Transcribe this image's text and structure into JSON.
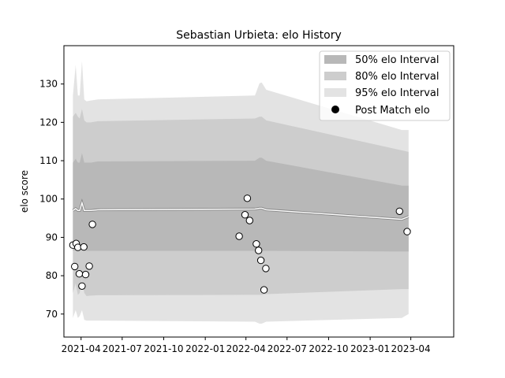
{
  "chart_data": {
    "type": "area",
    "title": "Sebastian Urbieta: elo History",
    "xlabel": "",
    "ylabel": "elo score",
    "x_range_days": [
      -38,
      825
    ],
    "ylim": [
      64,
      140
    ],
    "yticks": [
      70,
      80,
      90,
      100,
      110,
      120,
      130
    ],
    "xticks": [
      {
        "label": "2021-04",
        "day": 0
      },
      {
        "label": "2021-07",
        "day": 91
      },
      {
        "label": "2021-10",
        "day": 183
      },
      {
        "label": "2022-01",
        "day": 275
      },
      {
        "label": "2022-04",
        "day": 365
      },
      {
        "label": "2022-07",
        "day": 456
      },
      {
        "label": "2022-10",
        "day": 548
      },
      {
        "label": "2023-01",
        "day": 640
      },
      {
        "label": "2023-04",
        "day": 730
      }
    ],
    "legend": {
      "placement": "top-right",
      "entries": [
        "50% elo Interval",
        "80% elo Interval",
        "95% elo Interval",
        "Post Match elo"
      ]
    },
    "bands": {
      "days": [
        -18,
        -12,
        -7,
        -3,
        2,
        7,
        12,
        22,
        37,
        385,
        395,
        400,
        410,
        710,
        725
      ],
      "mean": [
        97,
        97.5,
        97,
        97,
        99,
        97,
        97,
        97,
        97.2,
        97.4,
        97.6,
        97.6,
        97.2,
        94.7,
        95.4
      ],
      "p50_lo": [
        86.5,
        86.7,
        86.5,
        86.5,
        87,
        86.5,
        86.5,
        86.5,
        86.5,
        86.5,
        86.5,
        86.5,
        86.5,
        86.3,
        86.3
      ],
      "p50_hi": [
        109.5,
        110.5,
        109.5,
        109.5,
        112,
        109.5,
        109.5,
        109.5,
        109.8,
        110,
        110.8,
        110.8,
        110,
        103.5,
        103.5
      ],
      "p80_lo": [
        75.5,
        78,
        75,
        75.5,
        79,
        75.5,
        74.7,
        74.8,
        74.9,
        75,
        75,
        75,
        75.2,
        76.5,
        76.5
      ],
      "p80_hi": [
        121.5,
        122.5,
        121.5,
        121,
        123.5,
        120.5,
        120,
        120,
        120.3,
        121,
        121.5,
        121.5,
        120.5,
        112.7,
        112.3
      ],
      "p95_lo": [
        69,
        71,
        69,
        69.5,
        71,
        68.5,
        68.3,
        68.3,
        68.3,
        68,
        67.5,
        67.5,
        68,
        69,
        70
      ],
      "p95_hi": [
        127,
        135,
        127,
        127,
        136,
        126,
        125.5,
        125.7,
        126,
        127,
        130.2,
        130.4,
        128.5,
        118,
        118
      ]
    },
    "post_match_elo": [
      {
        "day": -18,
        "value": 88.0
      },
      {
        "day": -14,
        "value": 82.4
      },
      {
        "day": -11,
        "value": 88.4
      },
      {
        "day": -7,
        "value": 87.4
      },
      {
        "day": -4,
        "value": 80.5
      },
      {
        "day": 2,
        "value": 77.3
      },
      {
        "day": 6,
        "value": 87.5
      },
      {
        "day": 10,
        "value": 80.3
      },
      {
        "day": 18,
        "value": 82.5
      },
      {
        "day": 25,
        "value": 93.4
      },
      {
        "day": 350,
        "value": 90.3
      },
      {
        "day": 363,
        "value": 95.9
      },
      {
        "day": 368,
        "value": 100.2
      },
      {
        "day": 373,
        "value": 94.4
      },
      {
        "day": 388,
        "value": 88.3
      },
      {
        "day": 393,
        "value": 86.6
      },
      {
        "day": 398,
        "value": 84.0
      },
      {
        "day": 405,
        "value": 76.3
      },
      {
        "day": 409,
        "value": 81.9
      },
      {
        "day": 705,
        "value": 96.8
      },
      {
        "day": 722,
        "value": 91.5
      }
    ],
    "colors": {
      "p50": "#b8b8b8",
      "p80": "#cdcdcd",
      "p95": "#e3e3e3",
      "mean_line": "#ffffff",
      "mean_edge": "#888888",
      "marker_fill": "#ffffff",
      "marker_edge": "#000000"
    }
  }
}
